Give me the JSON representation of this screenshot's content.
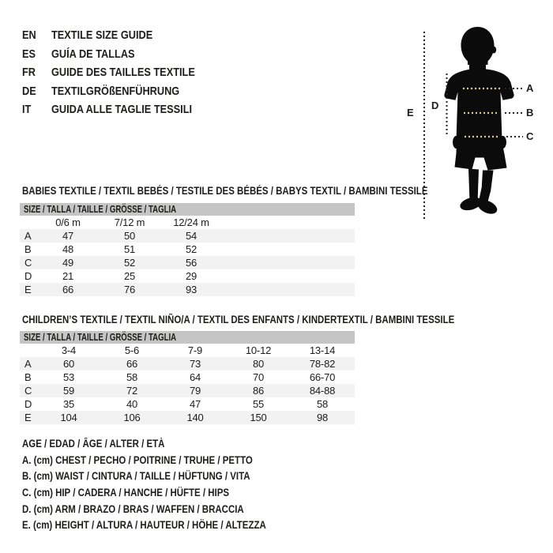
{
  "language_list": [
    {
      "code": "EN",
      "title": "TEXTILE SIZE GUIDE"
    },
    {
      "code": "ES",
      "title": "GUÍA DE TALLAS"
    },
    {
      "code": "FR",
      "title": "GUIDE DES TAILLES TEXTILE"
    },
    {
      "code": "DE",
      "title": "TEXTILGRÖßENFÜHRUNG"
    },
    {
      "code": "IT",
      "title": "GUIDA ALLE TAGLIE TESSILI"
    }
  ],
  "figure": {
    "description": "child-silhouette-with-measurement-lines",
    "measure_labels": {
      "a": "A",
      "b": "B",
      "c": "C",
      "d": "D",
      "e": "E"
    },
    "dot_color": "#d8c98e",
    "silhouette_color": "#0b0b0b"
  },
  "babies_table": {
    "title": "BABIES TEXTILE / TEXTIL BEBÉS / TESTILE DES BÉBÉS / BABYS TEXTIL / BAMBINI TESSILE",
    "size_header": "SIZE / TALLA / TAILLE / GRÖSSE / TAGLIA",
    "columns": [
      "0/6 m",
      "7/12 m",
      "12/24 m"
    ],
    "rows": [
      {
        "label": "A",
        "values": [
          "47",
          "50",
          "54"
        ]
      },
      {
        "label": "B",
        "values": [
          "48",
          "51",
          "52"
        ]
      },
      {
        "label": "C",
        "values": [
          "49",
          "52",
          "56"
        ]
      },
      {
        "label": "D",
        "values": [
          "21",
          "25",
          "29"
        ]
      },
      {
        "label": "E",
        "values": [
          "66",
          "76",
          "93"
        ]
      }
    ]
  },
  "children_table": {
    "title": "CHILDREN’S TEXTILE / TEXTIL NIÑO/A / TEXTIL DES ENFANTS / KINDERTEXTIL / BAMBINI TESSILE",
    "size_header": "SIZE / TALLA / TAILLE / GRÖSSE / TAGLIA",
    "columns": [
      "3-4",
      "5-6",
      "7-9",
      "10-12",
      "13-14"
    ],
    "rows": [
      {
        "label": "A",
        "values": [
          "60",
          "66",
          "73",
          "80",
          "78-82"
        ]
      },
      {
        "label": "B",
        "values": [
          "53",
          "58",
          "64",
          "70",
          "66-70"
        ]
      },
      {
        "label": "C",
        "values": [
          "59",
          "72",
          "79",
          "86",
          "84-88"
        ]
      },
      {
        "label": "D",
        "values": [
          "35",
          "40",
          "47",
          "55",
          "58"
        ]
      },
      {
        "label": "E",
        "values": [
          "104",
          "106",
          "140",
          "150",
          "98"
        ]
      }
    ]
  },
  "legend": {
    "age_line": "AGE / EDAD / ÂGE / ALTER / ETÀ",
    "lines": [
      "A. (cm) CHEST / PECHO / POITRINE / TRUHE / PETTO",
      "B. (cm) WAIST / CINTURA / TAILLE / HÜFTUNG / VITA",
      "C. (cm) HIP / CADERA / HANCHE / HÜFTE / HIPS",
      "D. (cm) ARM / BRAZO / BRAS / WAFFEN / BRACCIA",
      "E. (cm) HEIGHT / ALTURA / HAUTEUR / HÖHE / ALTEZZA"
    ]
  },
  "colors": {
    "text": "#1d1d1b",
    "size_header_bg": "#c5c5c5",
    "row_stripe_bg": "#f2f2f2"
  }
}
